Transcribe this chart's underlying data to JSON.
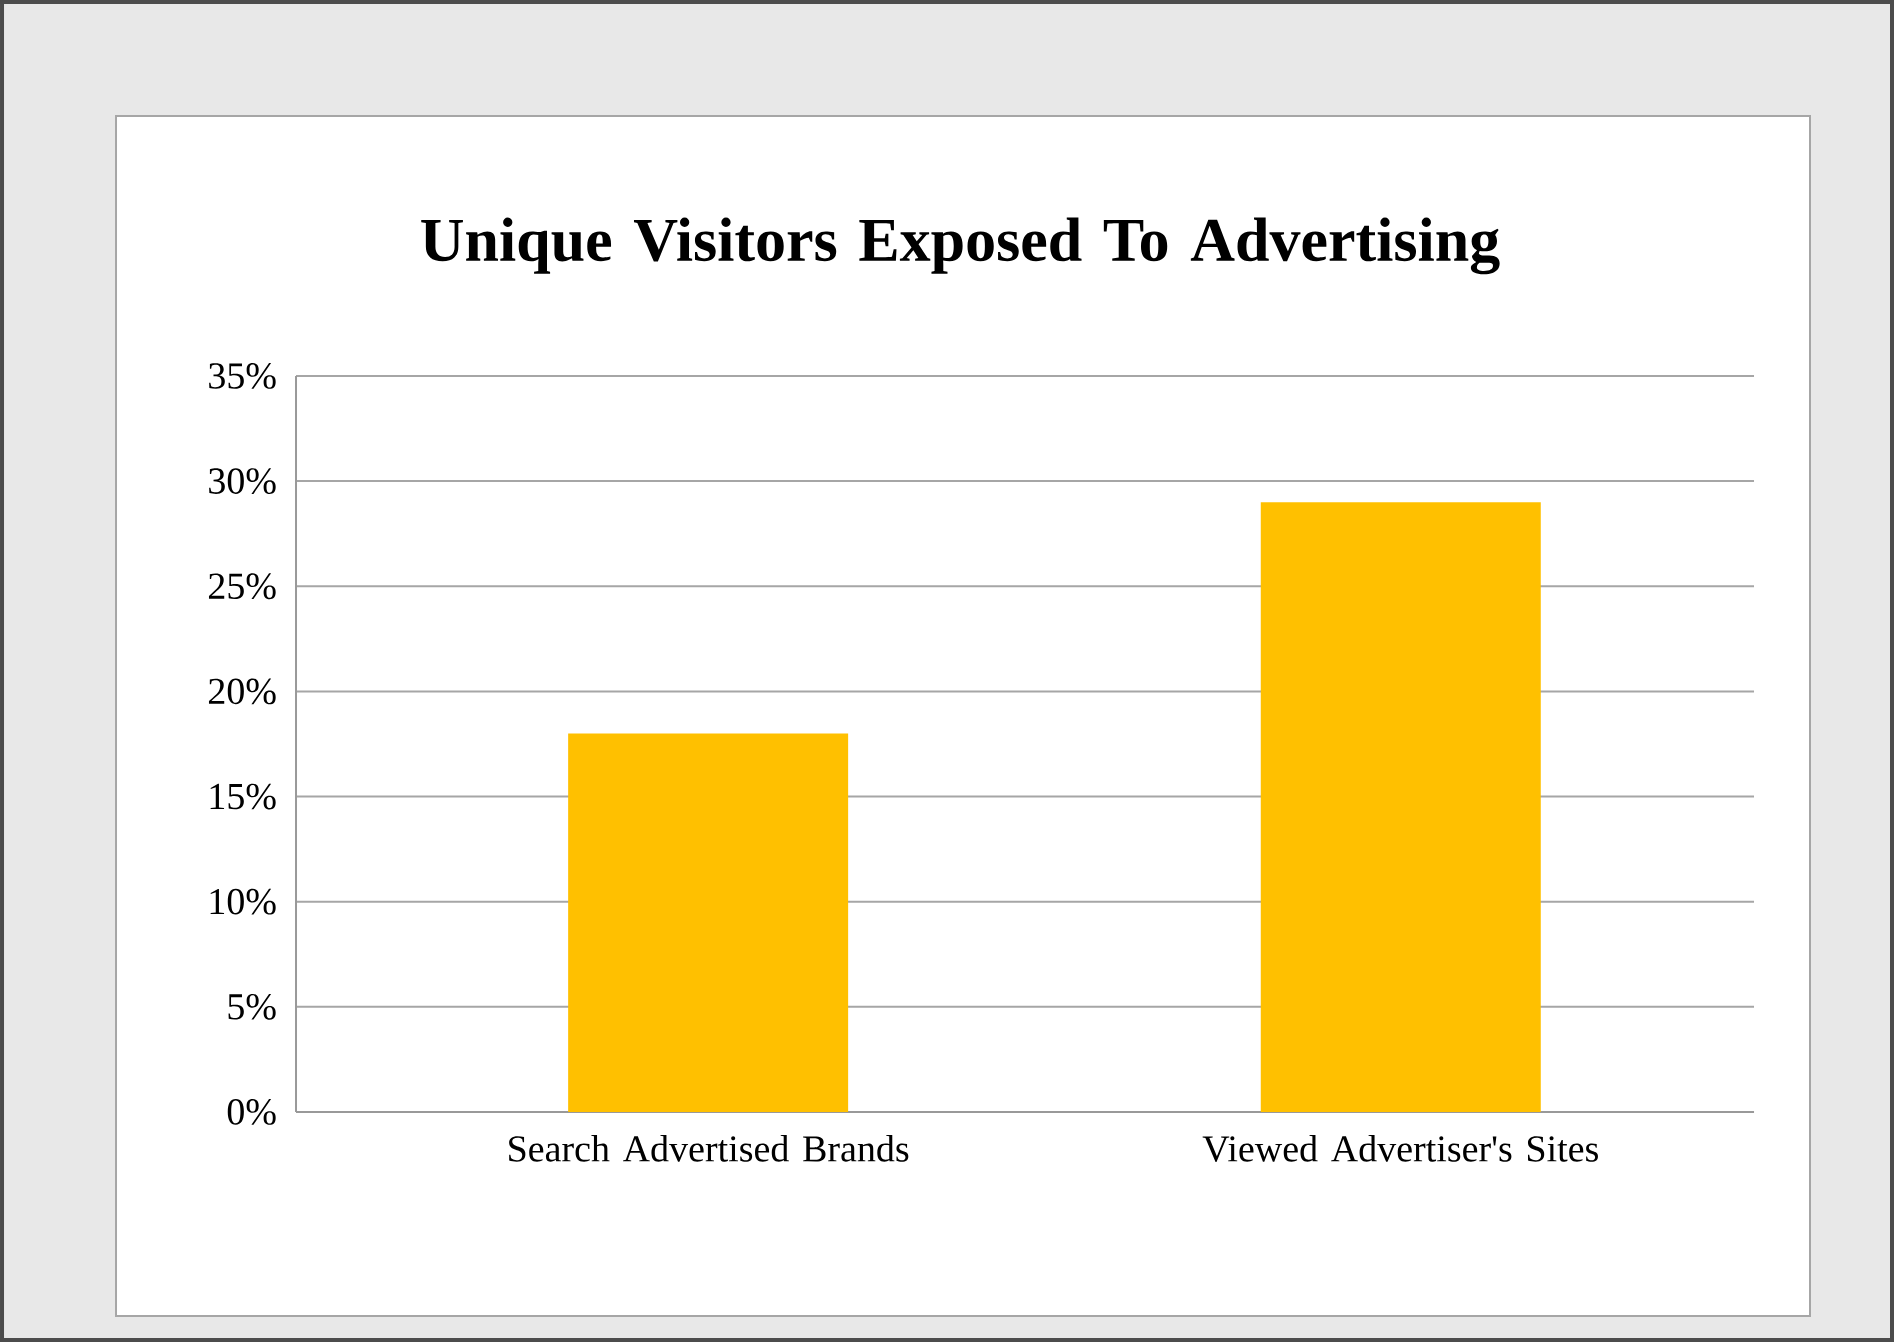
{
  "chart_data": {
    "type": "bar",
    "title": "Unique Visitors Exposed To Advertising",
    "categories": [
      "Search Advertised Brands",
      "Viewed Advertiser's Sites"
    ],
    "values": [
      18,
      29
    ],
    "color": "#ffc000",
    "ylim": [
      0,
      35
    ],
    "yticks": [
      {
        "value": 0,
        "label": "0%"
      },
      {
        "value": 5,
        "label": "5%"
      },
      {
        "value": 10,
        "label": "10%"
      },
      {
        "value": 15,
        "label": "15%"
      },
      {
        "value": 20,
        "label": "20%"
      },
      {
        "value": 25,
        "label": "25%"
      },
      {
        "value": 30,
        "label": "30%"
      },
      {
        "value": 35,
        "label": "35%"
      }
    ],
    "grid": "y"
  }
}
